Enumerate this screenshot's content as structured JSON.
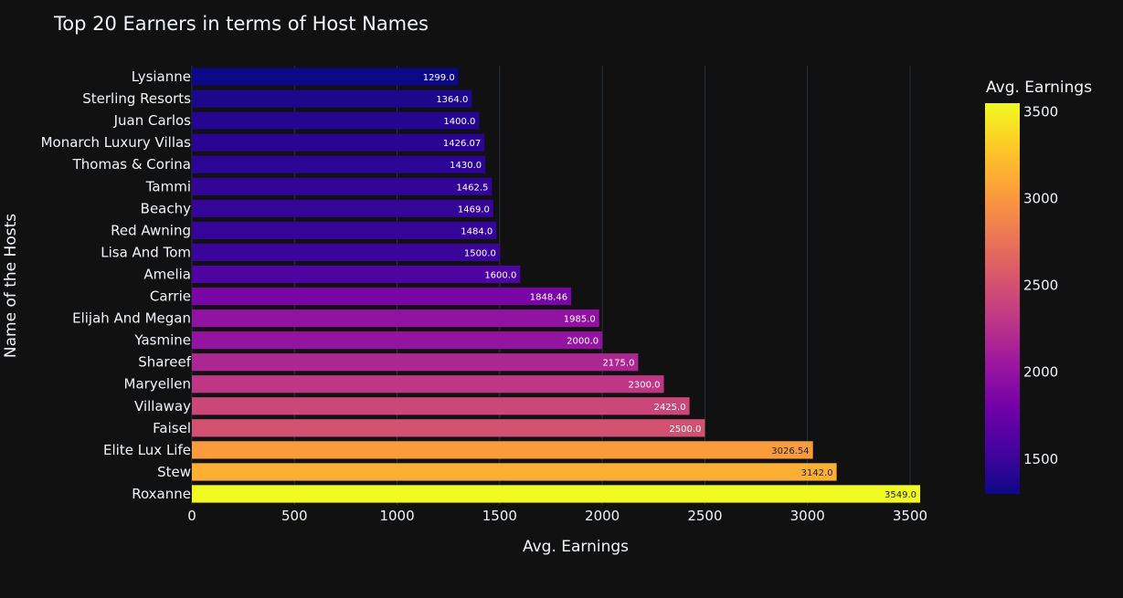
{
  "chart_data": {
    "type": "bar",
    "orientation": "horizontal",
    "title": "Top 20 Earners in terms of Host Names",
    "xlabel": "Avg. Earnings",
    "ylabel": "Name of the Hosts",
    "xlim": [
      0,
      3549
    ],
    "xticks": [
      0,
      500,
      1000,
      1500,
      2000,
      2500,
      3000,
      3500
    ],
    "grid": true,
    "categories": [
      "Lysianne",
      "Sterling Resorts",
      "Juan Carlos",
      "Monarch Luxury Villas",
      "Thomas & Corina",
      "Tammi",
      "Beachy",
      "Red Awning",
      "Lisa And Tom",
      "Amelia",
      "Carrie",
      "Elijah And Megan",
      "Yasmine",
      "Shareef",
      "Maryellen",
      "Villaway",
      "Faisel",
      "Elite Lux Life",
      "Stew",
      "Roxanne"
    ],
    "values": [
      1299.0,
      1364.0,
      1400.0,
      1426.07,
      1430.0,
      1462.5,
      1469.0,
      1484.0,
      1500.0,
      1600.0,
      1848.46,
      1985.0,
      2000.0,
      2175.0,
      2300.0,
      2425.0,
      2500.0,
      3026.54,
      3142.0,
      3549.0
    ],
    "data_labels": [
      "1299.0",
      "1364.0",
      "1400.0",
      "1426.07",
      "1430.0",
      "1462.5",
      "1469.0",
      "1484.0",
      "1500.0",
      "1600.0",
      "1848.46",
      "1985.0",
      "2000.0",
      "2175.0",
      "2300.0",
      "2425.0",
      "2500.0",
      "3026.54",
      "3142.0",
      "3549.0"
    ],
    "colorbar": {
      "title": "Avg. Earnings",
      "colorscale": "plasma",
      "range": [
        1299,
        3549
      ],
      "ticks": [
        1500,
        2000,
        2500,
        3000,
        3500
      ]
    }
  },
  "colors": {
    "background": "#111111",
    "grid": "#283442",
    "text": "#f2f5fa",
    "plasma": [
      "#0d0887",
      "#46039f",
      "#7201a8",
      "#9c179e",
      "#bd3786",
      "#d8576b",
      "#ed7953",
      "#fb9f3a",
      "#fdca26",
      "#f0f921"
    ]
  }
}
